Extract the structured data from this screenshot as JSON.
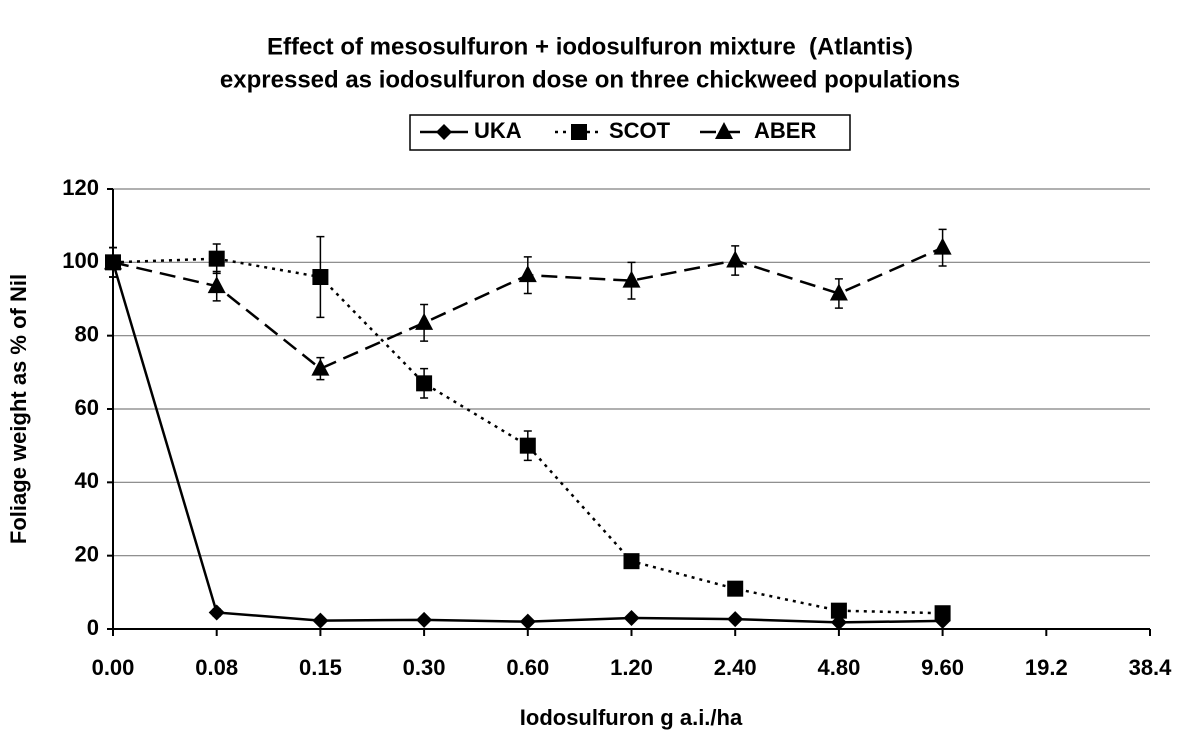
{
  "chart_data": {
    "type": "line",
    "title": [
      "Effect of mesosulfuron + iodosulfuron mixture  (Atlantis)",
      "expressed as iodosulfuron dose on three chickweed populations"
    ],
    "x_label": "Iodosulfuron g a.i./ha",
    "y_label": "Foliage weight as % of Nil",
    "categories": [
      "0.00",
      "0.08",
      "0.15",
      "0.30",
      "0.60",
      "1.20",
      "2.40",
      "4.80",
      "9.60",
      "19.2",
      "38.4"
    ],
    "series": [
      {
        "name": "UKA",
        "color": "#000000",
        "dash": "solid",
        "marker": "diamond",
        "values": [
          100,
          4.5,
          2.3,
          2.5,
          2,
          3,
          2.7,
          1.8,
          2.2,
          null,
          null
        ],
        "errors": [
          4,
          1,
          0.5,
          0.5,
          0.5,
          0.5,
          0.5,
          0.5,
          0.5,
          null,
          null
        ]
      },
      {
        "name": "SCOT",
        "color": "#000000",
        "dash": "dotted",
        "marker": "square",
        "values": [
          100,
          101,
          96,
          67,
          50,
          18.5,
          11,
          5,
          4.3,
          null,
          null
        ],
        "errors": [
          4,
          4,
          11,
          4,
          4,
          1,
          1,
          1,
          1,
          null,
          null
        ]
      },
      {
        "name": "ABER",
        "color": "#000000",
        "dash": "dashed",
        "marker": "triangle",
        "values": [
          100,
          93.5,
          71,
          83.5,
          96.5,
          95,
          100.5,
          91.5,
          104,
          null,
          null
        ],
        "errors": [
          4,
          4,
          3,
          5,
          5,
          5,
          4,
          4,
          5,
          null,
          null
        ]
      }
    ],
    "ylim": [
      0,
      120
    ],
    "yticks": [
      0,
      20,
      40,
      60,
      80,
      100,
      120
    ],
    "grid": true,
    "legend": "top"
  }
}
